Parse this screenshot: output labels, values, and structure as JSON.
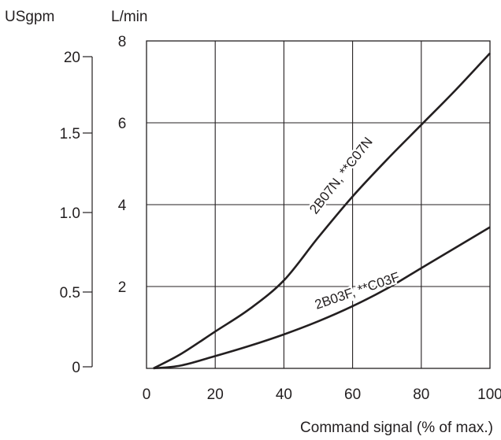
{
  "chart_data": {
    "type": "line",
    "title": "",
    "xlabel": "Command signal (% of max.)",
    "ylabel": "L/min",
    "ylabel_secondary": "USgpm",
    "xlim": [
      0,
      100
    ],
    "ylim": [
      0,
      8
    ],
    "x_ticks": [
      "0",
      "20",
      "40",
      "60",
      "80",
      "100"
    ],
    "y_ticks": [
      "2",
      "4",
      "6",
      "8"
    ],
    "y2_ticks": [
      "0",
      "0.5",
      "1.0",
      "1.5",
      "20"
    ],
    "grid": true,
    "series": [
      {
        "name": "2B07N, **C07N",
        "x": [
          2,
          10,
          20,
          30,
          40,
          50,
          60,
          70,
          80,
          90,
          100
        ],
        "y": [
          0,
          0.35,
          0.9,
          1.45,
          2.15,
          3.2,
          4.2,
          5.1,
          5.95,
          6.8,
          7.7
        ]
      },
      {
        "name": "2B03F, **C03F",
        "x": [
          2,
          10,
          20,
          30,
          40,
          50,
          60,
          70,
          80,
          90,
          100
        ],
        "y": [
          0,
          0.07,
          0.3,
          0.55,
          0.83,
          1.15,
          1.52,
          1.95,
          2.45,
          2.95,
          3.45
        ]
      }
    ],
    "colors": {
      "line": "#231f20",
      "grid": "#231f20"
    }
  }
}
